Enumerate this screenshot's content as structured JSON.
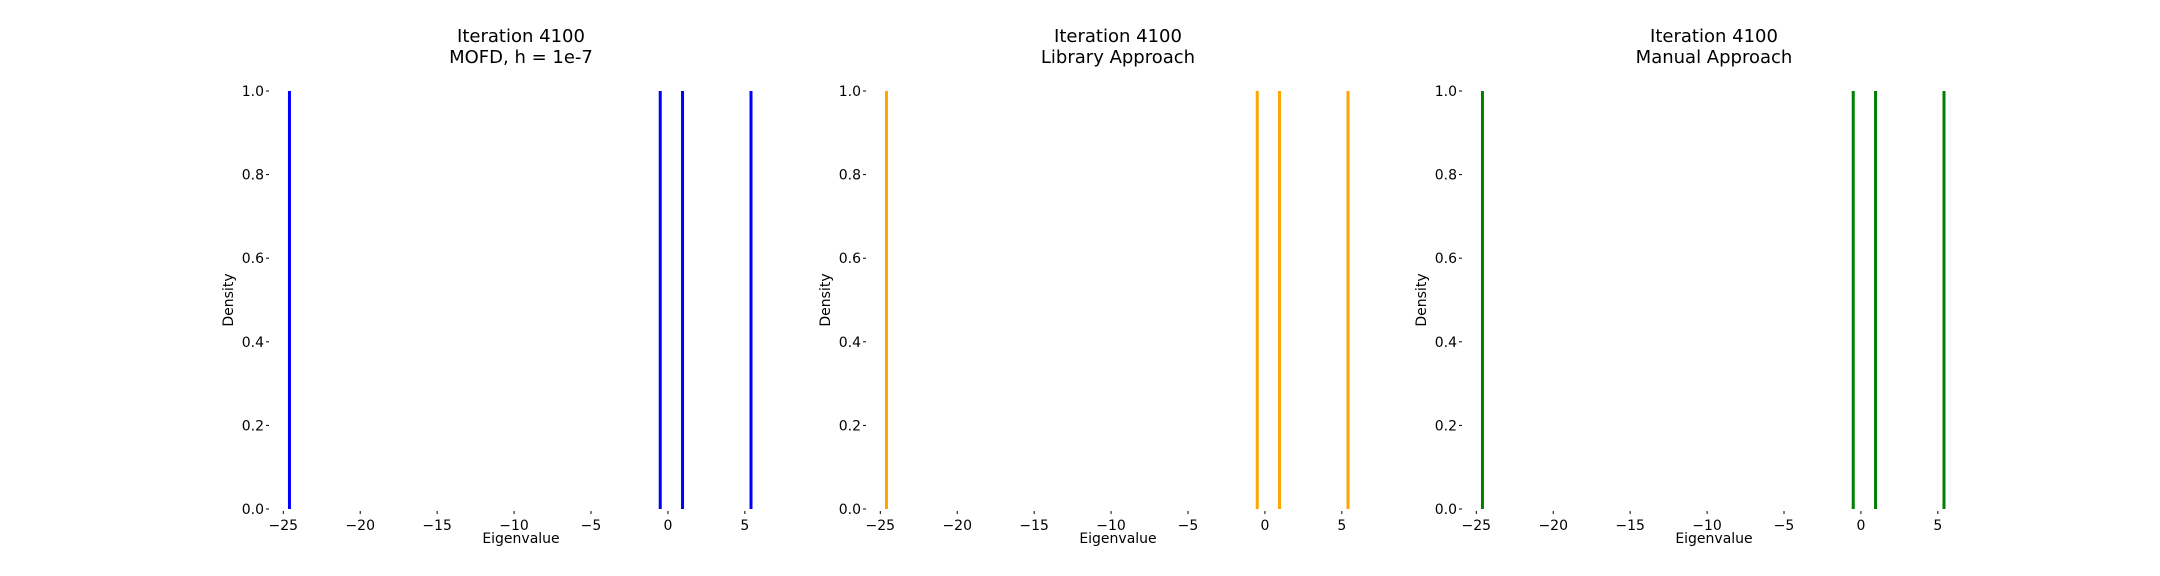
{
  "chart_data": [
    {
      "type": "line",
      "title": [
        "Iteration 4100",
        "MOFD, h = 1e-7"
      ],
      "xlabel": "Eigenvalue",
      "ylabel": "Density",
      "xlim": [
        -25.8,
        6.7
      ],
      "ylim": [
        0,
        1
      ],
      "xticks": [
        -25,
        -20,
        -15,
        -10,
        -5,
        0,
        5
      ],
      "xtick_labels": [
        "−25",
        "−20",
        "−15",
        "−10",
        "−5",
        "0",
        "5"
      ],
      "yticks": [
        0,
        0.2,
        0.4,
        0.6,
        0.8,
        1.0
      ],
      "ytick_labels": [
        "0.0",
        "0.2",
        "0.4",
        "0.6",
        "0.8",
        "1.0"
      ],
      "grid": false,
      "color": "#0000ff",
      "eigenvalues": [
        -24.6,
        -0.5,
        0.95,
        5.4
      ]
    },
    {
      "type": "line",
      "title": [
        "Iteration 4100",
        "Library Approach"
      ],
      "xlabel": "Eigenvalue",
      "ylabel": "Density",
      "xlim": [
        -25.8,
        6.7
      ],
      "ylim": [
        0,
        1
      ],
      "xticks": [
        -25,
        -20,
        -15,
        -10,
        -5,
        0,
        5
      ],
      "xtick_labels": [
        "−25",
        "−20",
        "−15",
        "−10",
        "−5",
        "0",
        "5"
      ],
      "yticks": [
        0,
        0.2,
        0.4,
        0.6,
        0.8,
        1.0
      ],
      "ytick_labels": [
        "0.0",
        "0.2",
        "0.4",
        "0.6",
        "0.8",
        "1.0"
      ],
      "grid": false,
      "color": "#ffa500",
      "eigenvalues": [
        -24.6,
        -0.5,
        0.95,
        5.4
      ]
    },
    {
      "type": "line",
      "title": [
        "Iteration 4100",
        "Manual Approach"
      ],
      "xlabel": "Eigenvalue",
      "ylabel": "Density",
      "xlim": [
        -25.8,
        6.7
      ],
      "ylim": [
        0,
        1
      ],
      "xticks": [
        -25,
        -20,
        -15,
        -10,
        -5,
        0,
        5
      ],
      "xtick_labels": [
        "−25",
        "−20",
        "−15",
        "−10",
        "−5",
        "0",
        "5"
      ],
      "yticks": [
        0,
        0.2,
        0.4,
        0.6,
        0.8,
        1.0
      ],
      "ytick_labels": [
        "0.0",
        "0.2",
        "0.4",
        "0.6",
        "0.8",
        "1.0"
      ],
      "grid": false,
      "color": "#008000",
      "eigenvalues": [
        -24.6,
        -0.5,
        0.95,
        5.4
      ]
    }
  ]
}
